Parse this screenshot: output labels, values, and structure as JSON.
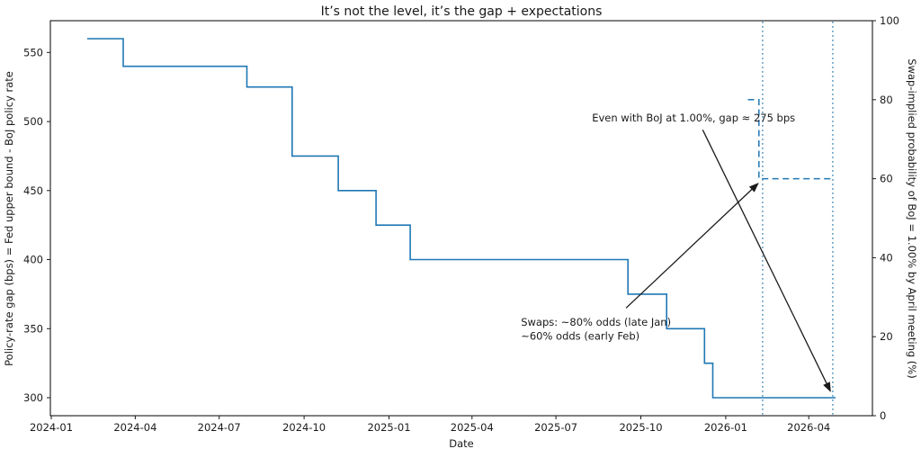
{
  "chart_data": {
    "type": "line",
    "title": "It’s not the level, it’s the gap + expectations",
    "xlabel": "Date",
    "ylabel_left": "Policy-rate gap (bps) = Fed upper bound - BoJ policy rate",
    "ylabel_right": "Swap-implied probability of BoJ = 1.00% by April meeting (%)",
    "grid": false,
    "legend": null,
    "x_domain": [
      "2023-12-31",
      "2026-06-09"
    ],
    "x_ticks": [
      {
        "date": "2024-01-01",
        "label": "2024-01"
      },
      {
        "date": "2024-04-01",
        "label": "2024-04"
      },
      {
        "date": "2024-07-01",
        "label": "2024-07"
      },
      {
        "date": "2024-10-01",
        "label": "2024-10"
      },
      {
        "date": "2025-01-01",
        "label": "2025-01"
      },
      {
        "date": "2025-04-01",
        "label": "2025-04"
      },
      {
        "date": "2025-07-01",
        "label": "2025-07"
      },
      {
        "date": "2025-10-01",
        "label": "2025-10"
      },
      {
        "date": "2026-01-01",
        "label": "2026-01"
      },
      {
        "date": "2026-04-01",
        "label": "2026-04"
      }
    ],
    "y_left": {
      "domain": [
        287,
        573
      ],
      "ticks": [
        300,
        350,
        400,
        450,
        500,
        550
      ]
    },
    "y_right": {
      "domain": [
        0,
        100
      ],
      "ticks": [
        0,
        20,
        40,
        60,
        80,
        100
      ]
    },
    "colors": {
      "series_blue": "#1f77b4",
      "vline_blue": "#4a8fb9",
      "arrow_black": "#1a1a1a",
      "spine_black": "#000000"
    },
    "series": [
      {
        "name": "policy-rate-gap-bps",
        "axis": "left",
        "step": true,
        "style": "solid",
        "color": "#1f77b4",
        "points": [
          [
            "2024-02-09",
            560
          ],
          [
            "2024-03-19",
            540
          ],
          [
            "2024-07-31",
            525
          ],
          [
            "2024-09-18",
            475
          ],
          [
            "2024-11-07",
            450
          ],
          [
            "2024-12-18",
            425
          ],
          [
            "2025-01-24",
            400
          ],
          [
            "2025-09-17",
            375
          ],
          [
            "2025-10-29",
            350
          ],
          [
            "2025-12-09",
            325
          ],
          [
            "2025-12-18",
            300
          ],
          [
            "2026-04-30",
            300
          ]
        ]
      },
      {
        "name": "swap-implied-probability-pct",
        "axis": "right",
        "step": true,
        "style": "dashed",
        "color": "#1f77b4",
        "points": [
          [
            "2026-01-25",
            80
          ],
          [
            "2026-02-06",
            60
          ],
          [
            "2026-04-27",
            60
          ]
        ]
      }
    ],
    "vlines": [
      {
        "name": "early-feb-marker",
        "date": "2026-02-10",
        "style": "dotted",
        "color": "#4a8fb9"
      },
      {
        "name": "april-meeting-marker",
        "date": "2026-04-27",
        "style": "dotted",
        "color": "#4a8fb9"
      }
    ],
    "annotations": [
      {
        "name": "gap-annotation",
        "text_lines": [
          "Even with BoJ at 1.00%, gap ≈ 275 bps"
        ],
        "text_anchor": {
          "date": "2025-08-09",
          "axis": "left",
          "value": 500
        },
        "arrow": {
          "from": {
            "date": "2025-12-07",
            "axis": "left",
            "value": 494
          },
          "to": {
            "date": "2026-04-25",
            "axis": "left",
            "value": 304
          }
        }
      },
      {
        "name": "swaps-annotation",
        "text_lines": [
          "Swaps: ~80% odds (late Jan)",
          "~60% odds (early Feb)"
        ],
        "text_anchor": {
          "date": "2025-05-24",
          "axis": "left",
          "value": 352
        },
        "arrow": {
          "from": {
            "date": "2025-09-15",
            "axis": "left",
            "value": 365
          },
          "to": {
            "date": "2026-02-06",
            "axis": "right",
            "value": 59
          }
        }
      }
    ]
  }
}
